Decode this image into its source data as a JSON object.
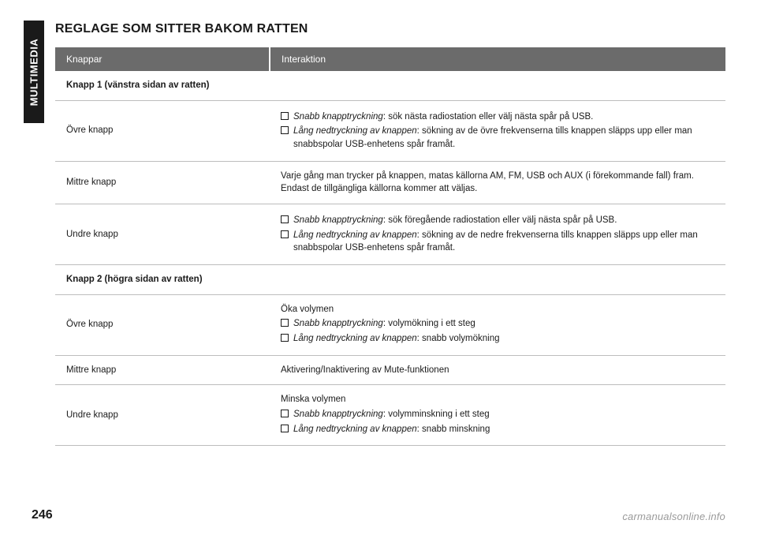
{
  "side_tab": "MULTIMEDIA",
  "title": "REGLAGE SOM SITTER BAKOM RATTEN",
  "header": {
    "left": "Knappar",
    "right": "Interaktion"
  },
  "groups": [
    {
      "label": "Knapp 1 (vänstra sidan av ratten)",
      "rows": [
        {
          "name": "Övre knapp",
          "bullets": [
            {
              "lead": "Snabb knapptryckning",
              "rest": ": sök nästa radiostation eller välj nästa spår på USB."
            },
            {
              "lead": "Lång nedtryckning av knappen",
              "rest": ": sökning av de övre frekvenserna tills knappen släpps upp eller man snabbspolar USB-enhetens spår framåt."
            }
          ]
        },
        {
          "name": "Mittre knapp",
          "plain": "Varje gång man trycker på knappen, matas källorna AM, FM, USB och AUX (i förekommande fall) fram. Endast de tillgängliga källorna kommer att väljas."
        },
        {
          "name": "Undre knapp",
          "bullets": [
            {
              "lead": "Snabb knapptryckning",
              "rest": ": sök föregående radiostation eller välj nästa spår på USB."
            },
            {
              "lead": "Lång nedtryckning av knappen",
              "rest": ": sökning av de nedre frekvenserna tills knappen släpps upp eller man snabbspolar USB-enhetens spår framåt."
            }
          ]
        }
      ]
    },
    {
      "label": "Knapp 2 (högra sidan av ratten)",
      "rows": [
        {
          "name": "Övre knapp",
          "intro": "Öka volymen",
          "bullets": [
            {
              "lead": "Snabb knapptryckning",
              "rest": ": volymökning i ett steg"
            },
            {
              "lead": "Lång nedtryckning av knappen",
              "rest": ": snabb volymökning"
            }
          ]
        },
        {
          "name": "Mittre knapp",
          "plain": "Aktivering/Inaktivering av Mute-funktionen"
        },
        {
          "name": "Undre knapp",
          "intro": "Minska volymen",
          "bullets": [
            {
              "lead": "Snabb knapptryckning",
              "rest": ": volymminskning i ett steg"
            },
            {
              "lead": "Lång nedtryckning av knappen",
              "rest": ": snabb minskning"
            }
          ]
        }
      ]
    }
  ],
  "footer": {
    "page": "246",
    "site": "carmanualsonline.info"
  },
  "colors": {
    "header_bg": "#6b6b6b",
    "rule": "#bdbdbd",
    "text": "#1a1a1a",
    "tab_bg": "#1a1a1a"
  }
}
